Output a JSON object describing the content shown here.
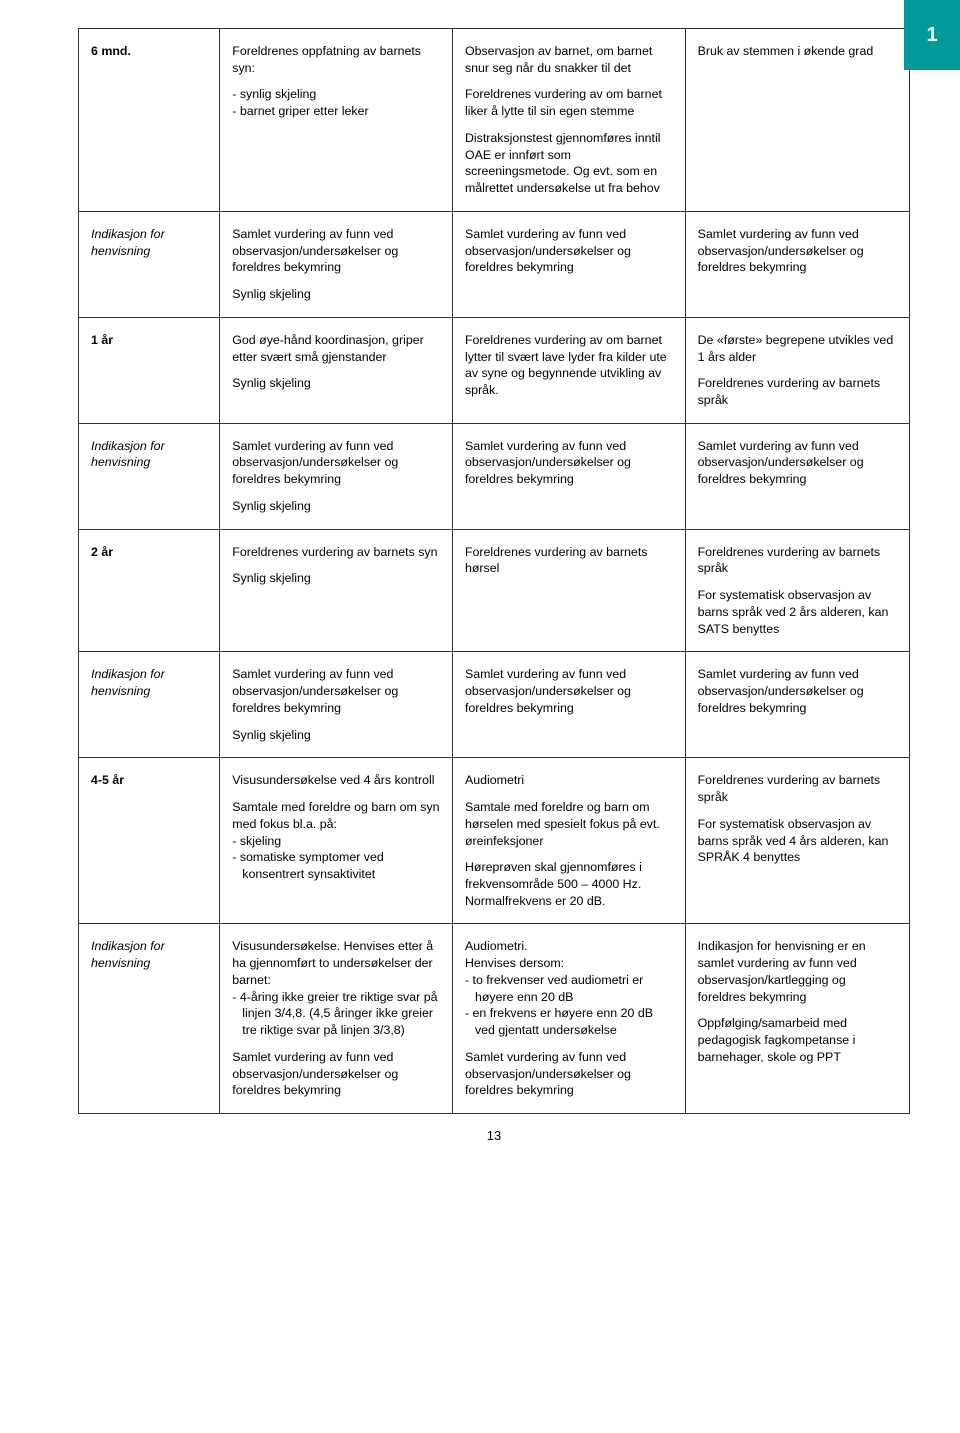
{
  "page_number": "13",
  "side_tab": "1",
  "colors": {
    "teal": "#009a9a",
    "border": "#333333",
    "text": "#000000",
    "background": "#ffffff"
  },
  "labels": {
    "indikasjon": "Indikasjon for henvisning",
    "samlet": "Samlet vurdering av funn ved observasjon/undersøkelser og foreldres bekymring",
    "synlig": "Synlig skjeling"
  },
  "rows": {
    "r6mnd": {
      "age": "6 mnd.",
      "c1_intro": "Foreldrenes oppfatning av barnets syn:",
      "c1_items": [
        "synlig skjeling",
        "barnet griper etter leker"
      ],
      "c2_p1": "Observasjon av barnet, om barnet snur seg når du snakker til det",
      "c2_p2": "Foreldrenes vurdering av om barnet liker å lytte til sin egen stemme",
      "c2_p3": "Distraksjonstest gjennomføres inntil OAE er innført som screeningsmetode. Og evt. som en målrettet undersøkelse ut fra behov",
      "c3_p1": "Bruk av stemmen i økende grad"
    },
    "r1ar": {
      "age": "1 år",
      "c1_p1": "God øye-hånd koordinasjon, griper etter svært små gjenstander",
      "c2_p1": "Foreldrenes vurdering av om barnet lytter til svært lave lyder fra kilder ute av syne og begynnende utvikling av språk.",
      "c3_p1": "De «første» begrepene utvikles ved 1 års alder",
      "c3_p2": "Foreldrenes vurdering av barnets språk"
    },
    "r2ar": {
      "age": "2 år",
      "c1_p1": "Foreldrenes vurdering av barnets syn",
      "c2_p1": "Foreldrenes vurdering av barnets hørsel",
      "c3_p1": "Foreldrenes vurdering av barnets språk",
      "c3_p2": "For systematisk observasjon av barns språk ved 2 års alderen, kan SATS benyttes"
    },
    "r45ar": {
      "age": "4-5 år",
      "c1_p1": "Visusundersøkelse ved 4 års kontroll",
      "c1_p2": "Samtale med foreldre og barn om syn med fokus bl.a. på:",
      "c1_items": [
        "skjeling",
        "somatiske symptomer ved konsentrert synsaktivitet"
      ],
      "c2_p1": "Audiometri",
      "c2_p2": "Samtale med foreldre og barn om hørselen med spesielt fokus på evt. øreinfeksjoner",
      "c2_p3": "Høreprøven skal gjennomføres i frekvensområde 500 – 4000 Hz. Normalfrekvens er 20 dB.",
      "c3_p1": "Foreldrenes vurdering av barnets språk",
      "c3_p2": "For systematisk observasjon av barns språk ved 4 års alderen, kan SPRÅK 4 benyttes"
    },
    "r45ind": {
      "c1_p1": "Visusundersøkelse. Henvises etter å ha gjennomført to undersøkelser der barnet:",
      "c1_items": [
        "4-åring ikke greier tre riktige svar på linjen 3/4,8. (4,5 åringer ikke greier tre riktige svar på linjen 3/3,8)"
      ],
      "c2_p1": "Audiometri.",
      "c2_p2": "Henvises dersom:",
      "c2_items": [
        "to frekvenser ved audiometri er høyere enn 20 dB",
        "en frekvens er høyere enn 20 dB ved gjentatt undersøkelse"
      ],
      "c3_p1": "Indikasjon for henvisning er en samlet vurdering av funn ved observasjon/kartlegging og foreldres bekymring",
      "c3_p2": "Oppfølging/samarbeid med pedagogisk fagkompetanse i barnehager, skole og PPT"
    }
  }
}
